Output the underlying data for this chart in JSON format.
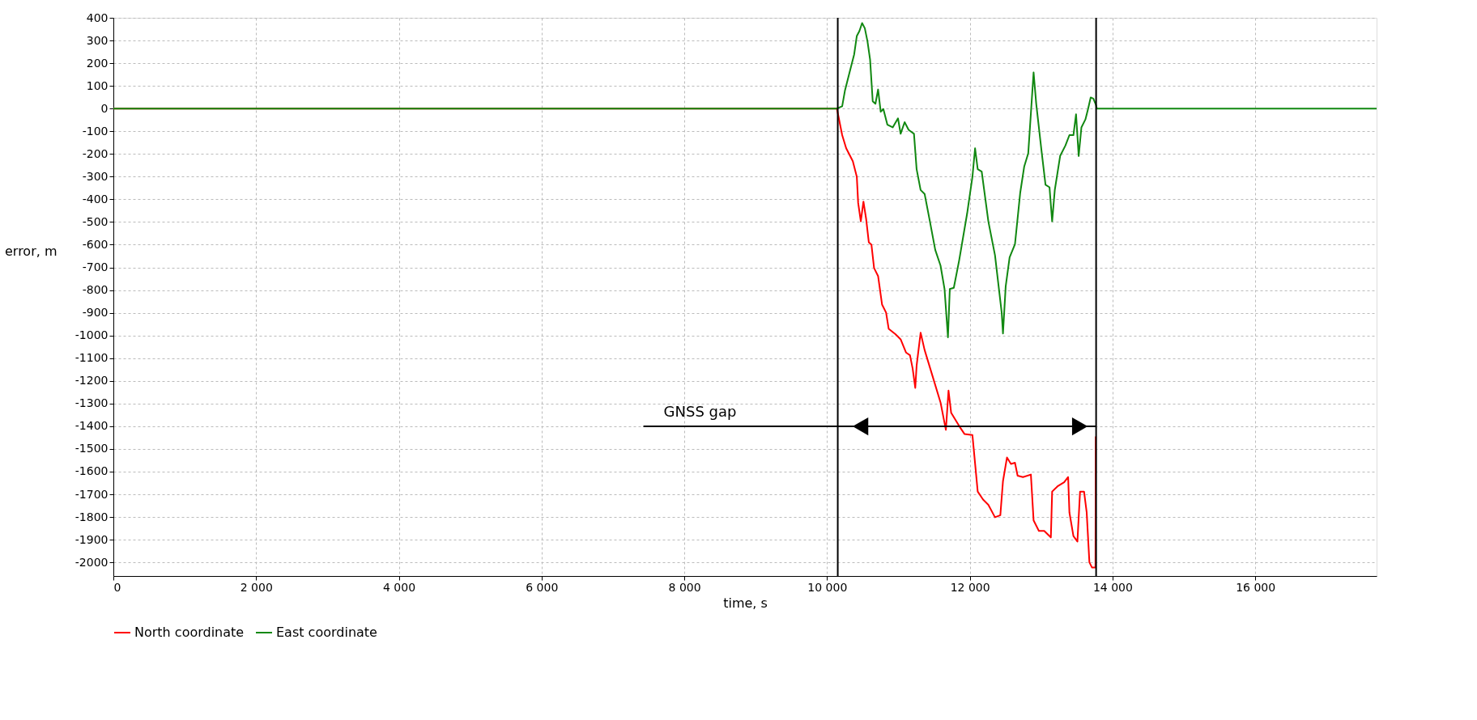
{
  "chart_data": {
    "type": "line",
    "xlabel": "time, s",
    "ylabel": "error, m",
    "xlim": [
      0,
      17700
    ],
    "ylim": [
      -2060,
      400
    ],
    "xticks": [
      0,
      {
        "value": 2000,
        "label": "2 000"
      },
      {
        "value": 4000,
        "label": "4 000"
      },
      {
        "value": 6000,
        "label": "6 000"
      },
      {
        "value": 8000,
        "label": "8 000"
      },
      {
        "value": 10000,
        "label": "10 000"
      },
      {
        "value": 12000,
        "label": "12 000"
      },
      {
        "value": 14000,
        "label": "14 000"
      },
      {
        "value": 16000,
        "label": "16 000"
      }
    ],
    "yticks": [
      400,
      300,
      200,
      100,
      0,
      -100,
      -200,
      -300,
      -400,
      -500,
      -600,
      -700,
      -800,
      -900,
      -1000,
      -1100,
      -1200,
      -1300,
      -1400,
      -1500,
      -1600,
      -1700,
      -1800,
      -1900,
      -2000
    ],
    "grid": true,
    "legend": "bottom",
    "series": [
      {
        "name": "North coordinate",
        "color": "#ff0000",
        "x": [
          0,
          10138,
          10212,
          10268,
          10361,
          10417,
          10436,
          10473,
          10510,
          10547,
          10585,
          10622,
          10659,
          10715,
          10771,
          10827,
          10864,
          10957,
          11031,
          11106,
          11162,
          11199,
          11236,
          11255,
          11311,
          11367,
          11478,
          11590,
          11665,
          11702,
          11739,
          11851,
          11925,
          12037,
          12111,
          12186,
          12260,
          12353,
          12428,
          12465,
          12521,
          12577,
          12633,
          12670,
          12745,
          12856,
          12894,
          12968,
          13043,
          13136,
          13154,
          13229,
          13322,
          13378,
          13396,
          13452,
          13508,
          13545,
          13601,
          13638,
          13676,
          13713,
          13761,
          13765
        ],
        "values": [
          0,
          0,
          -117,
          -175,
          -232,
          -301,
          -416,
          -497,
          -410,
          -485,
          -589,
          -600,
          -703,
          -738,
          -864,
          -899,
          -971,
          -994,
          -1017,
          -1075,
          -1087,
          -1145,
          -1231,
          -1133,
          -988,
          -1064,
          -1179,
          -1295,
          -1416,
          -1243,
          -1341,
          -1399,
          -1434,
          -1439,
          -1688,
          -1723,
          -1746,
          -1801,
          -1792,
          -1642,
          -1538,
          -1566,
          -1561,
          -1618,
          -1624,
          -1613,
          -1815,
          -1861,
          -1861,
          -1890,
          -1688,
          -1665,
          -1647,
          -1624,
          -1780,
          -1884,
          -1908,
          -1688,
          -1688,
          -1780,
          -2000,
          -2023,
          -2023,
          -1445
        ]
      },
      {
        "name": "East coordinate",
        "color": "#118811",
        "x": [
          0,
          10138,
          10212,
          10250,
          10324,
          10380,
          10417,
          10454,
          10491,
          10529,
          10566,
          10603,
          10640,
          10678,
          10715,
          10752,
          10789,
          10845,
          10920,
          10994,
          11031,
          11087,
          11143,
          11218,
          11255,
          11311,
          11367,
          11441,
          11516,
          11590,
          11646,
          11694,
          11720,
          11776,
          11851,
          11963,
          12037,
          12074,
          12111,
          12167,
          12260,
          12353,
          12447,
          12465,
          12503,
          12558,
          12633,
          12707,
          12763,
          12819,
          12894,
          12931,
          13005,
          13061,
          13117,
          13154,
          13191,
          13266,
          13340,
          13396,
          13452,
          13489,
          13526,
          13564,
          13620,
          13657,
          13694,
          13731,
          13769,
          13780,
          17700
        ],
        "values": [
          0,
          0,
          10,
          78,
          170,
          239,
          320,
          342,
          377,
          354,
          297,
          216,
          32,
          21,
          84,
          -14,
          -2,
          -71,
          -83,
          -43,
          -111,
          -60,
          -94,
          -111,
          -267,
          -359,
          -376,
          -497,
          -623,
          -692,
          -795,
          -1008,
          -795,
          -790,
          -669,
          -462,
          -301,
          -175,
          -267,
          -278,
          -497,
          -646,
          -899,
          -991,
          -784,
          -656,
          -598,
          -370,
          -255,
          -197,
          159,
          21,
          -186,
          -336,
          -347,
          -497,
          -359,
          -209,
          -163,
          -117,
          -117,
          -25,
          -209,
          -83,
          -48,
          -2,
          49,
          44,
          15,
          0,
          0
        ]
      }
    ],
    "ref_lines": [
      {
        "axis": "x",
        "value": 10150,
        "color": "#000000"
      },
      {
        "axis": "x",
        "value": 13770,
        "color": "#000000"
      }
    ],
    "annotations": [
      "GNSS gap"
    ]
  }
}
